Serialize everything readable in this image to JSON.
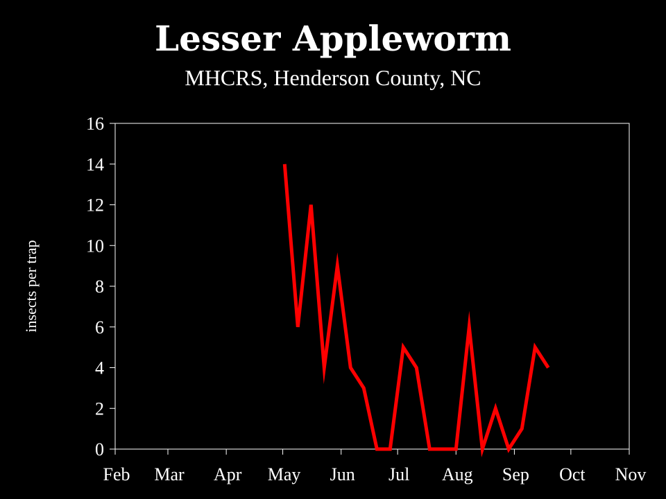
{
  "chart_data": {
    "type": "line",
    "title": "Lesser Appleworm",
    "subtitle": "MHCRS, Henderson County, NC",
    "xlabel": "",
    "ylabel": "insects per trap",
    "ylim": [
      0,
      16
    ],
    "yticks": [
      0,
      2,
      4,
      6,
      8,
      10,
      12,
      14,
      16
    ],
    "xticks": [
      "Feb",
      "Mar",
      "Apr",
      "May",
      "Jun",
      "Jul",
      "Aug",
      "Sep",
      "Oct",
      "Nov"
    ],
    "grid": false,
    "series": [
      {
        "color": "#ff0000",
        "x": [
          "May 2",
          "May 9",
          "May 16",
          "May 23",
          "May 30",
          "Jun 6",
          "Jun 13",
          "Jun 20",
          "Jun 27",
          "Jul 4",
          "Jul 11",
          "Jul 18",
          "Jul 25",
          "Aug 1",
          "Aug 8",
          "Aug 15",
          "Aug 22",
          "Aug 29",
          "Sep 5",
          "Sep 12",
          "Sep 19"
        ],
        "y": [
          14,
          6,
          12,
          4,
          9,
          4,
          3,
          0,
          0,
          5,
          4,
          0,
          0,
          0,
          6,
          0,
          2,
          0,
          1,
          5,
          4
        ]
      }
    ]
  }
}
